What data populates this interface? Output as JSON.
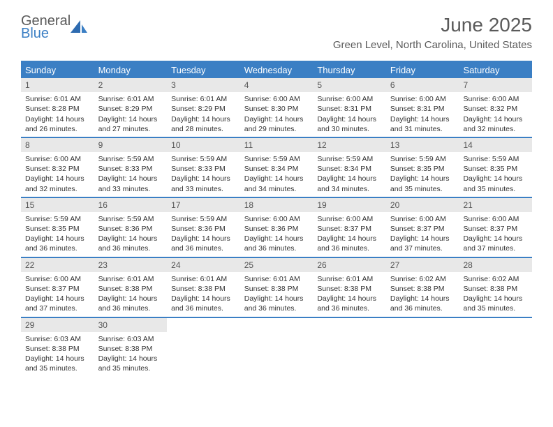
{
  "logo": {
    "general": "General",
    "blue": "Blue"
  },
  "header": {
    "month_title": "June 2025",
    "location": "Green Level, North Carolina, United States"
  },
  "colors": {
    "accent": "#3b7fc4",
    "header_text": "#ffffff",
    "daynum_bg": "#e8e8e8",
    "text": "#333333",
    "logo_gray": "#5a5a5a"
  },
  "day_names": [
    "Sunday",
    "Monday",
    "Tuesday",
    "Wednesday",
    "Thursday",
    "Friday",
    "Saturday"
  ],
  "weeks": [
    [
      {
        "date": "1",
        "sunrise": "Sunrise: 6:01 AM",
        "sunset": "Sunset: 8:28 PM",
        "daylight1": "Daylight: 14 hours",
        "daylight2": "and 26 minutes."
      },
      {
        "date": "2",
        "sunrise": "Sunrise: 6:01 AM",
        "sunset": "Sunset: 8:29 PM",
        "daylight1": "Daylight: 14 hours",
        "daylight2": "and 27 minutes."
      },
      {
        "date": "3",
        "sunrise": "Sunrise: 6:01 AM",
        "sunset": "Sunset: 8:29 PM",
        "daylight1": "Daylight: 14 hours",
        "daylight2": "and 28 minutes."
      },
      {
        "date": "4",
        "sunrise": "Sunrise: 6:00 AM",
        "sunset": "Sunset: 8:30 PM",
        "daylight1": "Daylight: 14 hours",
        "daylight2": "and 29 minutes."
      },
      {
        "date": "5",
        "sunrise": "Sunrise: 6:00 AM",
        "sunset": "Sunset: 8:31 PM",
        "daylight1": "Daylight: 14 hours",
        "daylight2": "and 30 minutes."
      },
      {
        "date": "6",
        "sunrise": "Sunrise: 6:00 AM",
        "sunset": "Sunset: 8:31 PM",
        "daylight1": "Daylight: 14 hours",
        "daylight2": "and 31 minutes."
      },
      {
        "date": "7",
        "sunrise": "Sunrise: 6:00 AM",
        "sunset": "Sunset: 8:32 PM",
        "daylight1": "Daylight: 14 hours",
        "daylight2": "and 32 minutes."
      }
    ],
    [
      {
        "date": "8",
        "sunrise": "Sunrise: 6:00 AM",
        "sunset": "Sunset: 8:32 PM",
        "daylight1": "Daylight: 14 hours",
        "daylight2": "and 32 minutes."
      },
      {
        "date": "9",
        "sunrise": "Sunrise: 5:59 AM",
        "sunset": "Sunset: 8:33 PM",
        "daylight1": "Daylight: 14 hours",
        "daylight2": "and 33 minutes."
      },
      {
        "date": "10",
        "sunrise": "Sunrise: 5:59 AM",
        "sunset": "Sunset: 8:33 PM",
        "daylight1": "Daylight: 14 hours",
        "daylight2": "and 33 minutes."
      },
      {
        "date": "11",
        "sunrise": "Sunrise: 5:59 AM",
        "sunset": "Sunset: 8:34 PM",
        "daylight1": "Daylight: 14 hours",
        "daylight2": "and 34 minutes."
      },
      {
        "date": "12",
        "sunrise": "Sunrise: 5:59 AM",
        "sunset": "Sunset: 8:34 PM",
        "daylight1": "Daylight: 14 hours",
        "daylight2": "and 34 minutes."
      },
      {
        "date": "13",
        "sunrise": "Sunrise: 5:59 AM",
        "sunset": "Sunset: 8:35 PM",
        "daylight1": "Daylight: 14 hours",
        "daylight2": "and 35 minutes."
      },
      {
        "date": "14",
        "sunrise": "Sunrise: 5:59 AM",
        "sunset": "Sunset: 8:35 PM",
        "daylight1": "Daylight: 14 hours",
        "daylight2": "and 35 minutes."
      }
    ],
    [
      {
        "date": "15",
        "sunrise": "Sunrise: 5:59 AM",
        "sunset": "Sunset: 8:35 PM",
        "daylight1": "Daylight: 14 hours",
        "daylight2": "and 36 minutes."
      },
      {
        "date": "16",
        "sunrise": "Sunrise: 5:59 AM",
        "sunset": "Sunset: 8:36 PM",
        "daylight1": "Daylight: 14 hours",
        "daylight2": "and 36 minutes."
      },
      {
        "date": "17",
        "sunrise": "Sunrise: 5:59 AM",
        "sunset": "Sunset: 8:36 PM",
        "daylight1": "Daylight: 14 hours",
        "daylight2": "and 36 minutes."
      },
      {
        "date": "18",
        "sunrise": "Sunrise: 6:00 AM",
        "sunset": "Sunset: 8:36 PM",
        "daylight1": "Daylight: 14 hours",
        "daylight2": "and 36 minutes."
      },
      {
        "date": "19",
        "sunrise": "Sunrise: 6:00 AM",
        "sunset": "Sunset: 8:37 PM",
        "daylight1": "Daylight: 14 hours",
        "daylight2": "and 36 minutes."
      },
      {
        "date": "20",
        "sunrise": "Sunrise: 6:00 AM",
        "sunset": "Sunset: 8:37 PM",
        "daylight1": "Daylight: 14 hours",
        "daylight2": "and 37 minutes."
      },
      {
        "date": "21",
        "sunrise": "Sunrise: 6:00 AM",
        "sunset": "Sunset: 8:37 PM",
        "daylight1": "Daylight: 14 hours",
        "daylight2": "and 37 minutes."
      }
    ],
    [
      {
        "date": "22",
        "sunrise": "Sunrise: 6:00 AM",
        "sunset": "Sunset: 8:37 PM",
        "daylight1": "Daylight: 14 hours",
        "daylight2": "and 37 minutes."
      },
      {
        "date": "23",
        "sunrise": "Sunrise: 6:01 AM",
        "sunset": "Sunset: 8:38 PM",
        "daylight1": "Daylight: 14 hours",
        "daylight2": "and 36 minutes."
      },
      {
        "date": "24",
        "sunrise": "Sunrise: 6:01 AM",
        "sunset": "Sunset: 8:38 PM",
        "daylight1": "Daylight: 14 hours",
        "daylight2": "and 36 minutes."
      },
      {
        "date": "25",
        "sunrise": "Sunrise: 6:01 AM",
        "sunset": "Sunset: 8:38 PM",
        "daylight1": "Daylight: 14 hours",
        "daylight2": "and 36 minutes."
      },
      {
        "date": "26",
        "sunrise": "Sunrise: 6:01 AM",
        "sunset": "Sunset: 8:38 PM",
        "daylight1": "Daylight: 14 hours",
        "daylight2": "and 36 minutes."
      },
      {
        "date": "27",
        "sunrise": "Sunrise: 6:02 AM",
        "sunset": "Sunset: 8:38 PM",
        "daylight1": "Daylight: 14 hours",
        "daylight2": "and 36 minutes."
      },
      {
        "date": "28",
        "sunrise": "Sunrise: 6:02 AM",
        "sunset": "Sunset: 8:38 PM",
        "daylight1": "Daylight: 14 hours",
        "daylight2": "and 35 minutes."
      }
    ],
    [
      {
        "date": "29",
        "sunrise": "Sunrise: 6:03 AM",
        "sunset": "Sunset: 8:38 PM",
        "daylight1": "Daylight: 14 hours",
        "daylight2": "and 35 minutes."
      },
      {
        "date": "30",
        "sunrise": "Sunrise: 6:03 AM",
        "sunset": "Sunset: 8:38 PM",
        "daylight1": "Daylight: 14 hours",
        "daylight2": "and 35 minutes."
      },
      null,
      null,
      null,
      null,
      null
    ]
  ]
}
